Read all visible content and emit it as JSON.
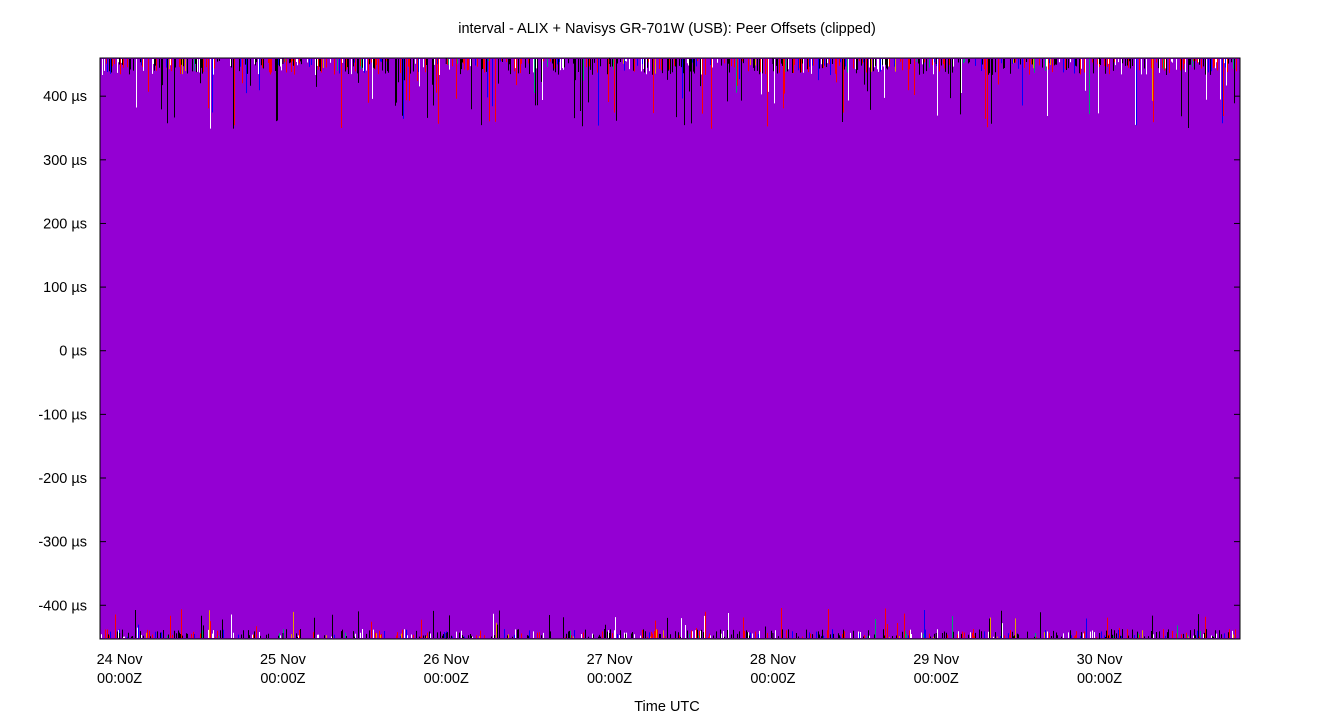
{
  "chart_data": {
    "type": "line",
    "title": "interval - ALIX + Navisys GR-701W (USB): Peer Offsets (clipped)",
    "xlabel": "Time UTC",
    "ylabel": "",
    "x_ticks": [
      {
        "day": "24 Nov",
        "time": "00:00Z"
      },
      {
        "day": "25 Nov",
        "time": "00:00Z"
      },
      {
        "day": "26 Nov",
        "time": "00:00Z"
      },
      {
        "day": "27 Nov",
        "time": "00:00Z"
      },
      {
        "day": "28 Nov",
        "time": "00:00Z"
      },
      {
        "day": "29 Nov",
        "time": "00:00Z"
      },
      {
        "day": "30 Nov",
        "time": "00:00Z"
      }
    ],
    "x_range_days": [
      23.88,
      30.86
    ],
    "y_ticks": [
      400,
      300,
      200,
      100,
      0,
      -100,
      -200,
      -300,
      -400
    ],
    "y_tick_labels": [
      "400 µs",
      "300 µs",
      "200 µs",
      "100 µs",
      "0 µs",
      "-100 µs",
      "-200 µs",
      "-300 µs",
      "-400 µs"
    ],
    "y_unit": "µs",
    "ylim": [
      -453,
      460
    ],
    "grid": false,
    "series": [
      {
        "color": "#9400d3",
        "values_range": [
          -460,
          460
        ]
      },
      {
        "color": "#ff0000"
      },
      {
        "color": "#000000"
      },
      {
        "color": "#ffffff"
      },
      {
        "color": "#0000ff"
      },
      {
        "color": "#009e73"
      },
      {
        "color": "#e69f00"
      }
    ]
  }
}
